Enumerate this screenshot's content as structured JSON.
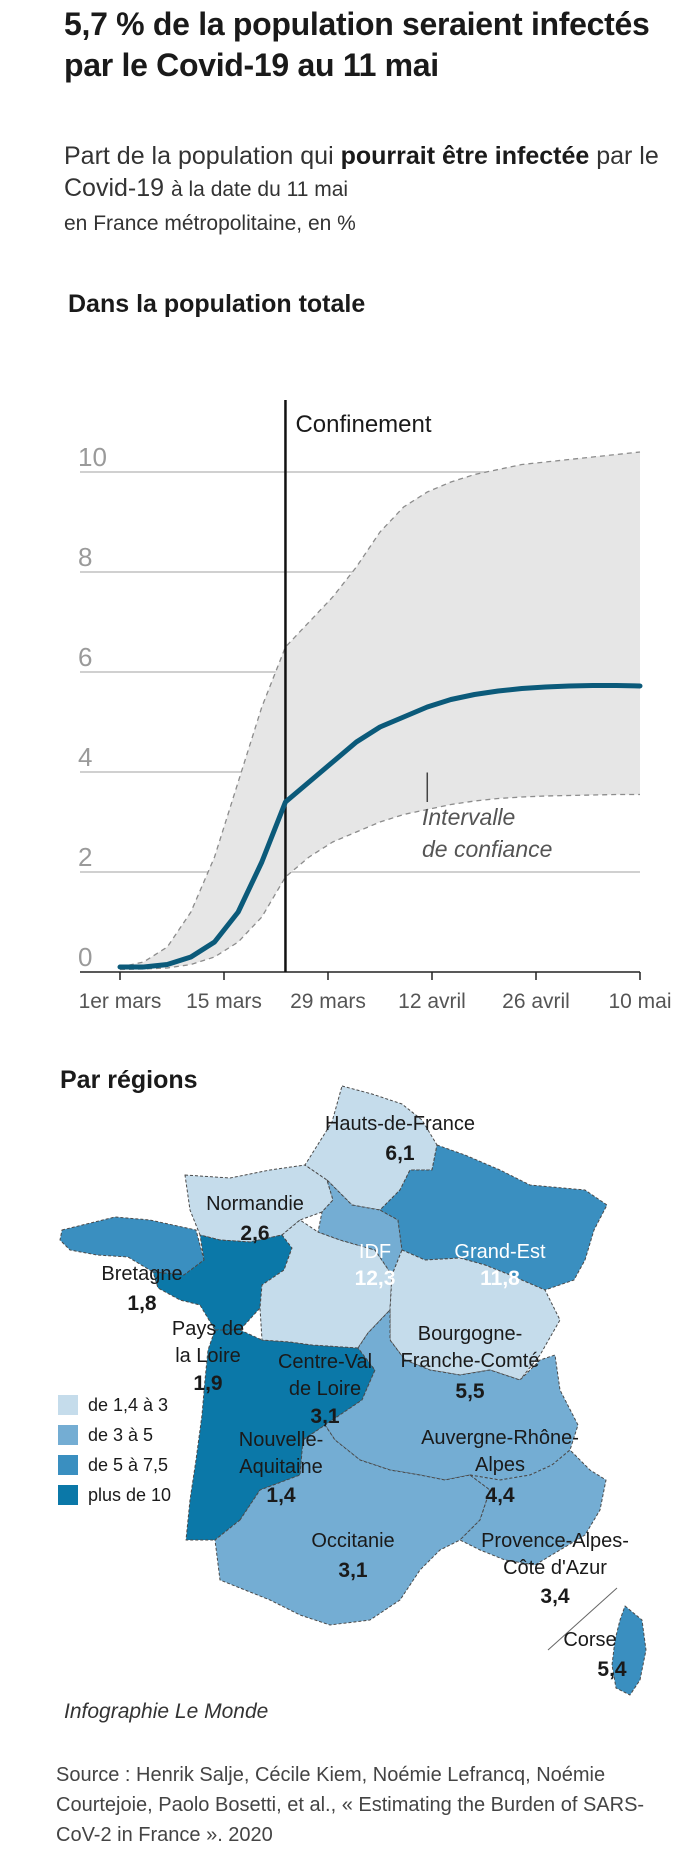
{
  "header": {
    "title": "5,7 % de la population seraient infectés par le Covid-19 au 11 mai",
    "subtitle_pre": "Part de la population qui ",
    "subtitle_bold": "pourrait être infectée",
    "subtitle_mid": " par le Covid-19 ",
    "subtitle_small": "à la date du 11 mai",
    "subtitle_post": "en France métropolitaine, en %"
  },
  "section_total": "Dans la population totale",
  "section_regions": "Par régions",
  "chart_data": [
    {
      "type": "line",
      "title": "Dans la population totale",
      "x_tick_labels": [
        "1er mars",
        "15 mars",
        "29 mars",
        "12 avril",
        "26 avril",
        "10 mai"
      ],
      "y_tick_labels": [
        "0",
        "2",
        "4",
        "6",
        "8",
        "10"
      ],
      "ylim": [
        0,
        10.5
      ],
      "grid": true,
      "series": [
        {
          "values": [
            0.1,
            0.1,
            0.15,
            0.3,
            0.6,
            1.2,
            2.2,
            3.4,
            3.8,
            4.2,
            4.6,
            4.9,
            5.1,
            5.3,
            5.45,
            5.55,
            5.62,
            5.67,
            5.7,
            5.72,
            5.73,
            5.73,
            5.72
          ]
        }
      ],
      "band_upper": [
        0.1,
        0.2,
        0.5,
        1.2,
        2.3,
        3.8,
        5.3,
        6.5,
        7.0,
        7.5,
        8.1,
        8.8,
        9.3,
        9.6,
        9.8,
        9.95,
        10.05,
        10.15,
        10.2,
        10.25,
        10.3,
        10.35,
        10.4
      ],
      "band_lower": [
        0.05,
        0.06,
        0.08,
        0.15,
        0.3,
        0.6,
        1.1,
        1.9,
        2.3,
        2.6,
        2.8,
        3.0,
        3.15,
        3.25,
        3.35,
        3.42,
        3.47,
        3.5,
        3.52,
        3.53,
        3.54,
        3.55,
        3.55
      ],
      "annotations": {
        "event": "Confinement",
        "band_label_1": "Intervalle",
        "band_label_2": "de confiance"
      },
      "colors": {
        "line": "#0b5a7a",
        "band": "#e6e6e6",
        "grid": "#b5b5b5"
      }
    },
    {
      "type": "map",
      "title": "Par régions",
      "regions": [
        {
          "name": "Hauts-de-France",
          "value": "6,1",
          "color": "#3a8fc0"
        },
        {
          "name": "Normandie",
          "value": "2,6",
          "color": "#c5dceb"
        },
        {
          "name": "IDF",
          "value": "12,3",
          "color": "#0b78a8"
        },
        {
          "name": "Grand-Est",
          "value": "11,8",
          "color": "#0b78a8"
        },
        {
          "name": "Bretagne",
          "value": "1,8",
          "color": "#c5dceb"
        },
        {
          "name": "Pays de la Loire",
          "value": "1,9",
          "color": "#c5dceb"
        },
        {
          "name": "Centre-Val de Loire",
          "value": "3,1",
          "color": "#74add3"
        },
        {
          "name": "Bourgogne-Franche-Comté",
          "value": "5,5",
          "color": "#3a8fc0"
        },
        {
          "name": "Nouvelle-Aquitaine",
          "value": "1,4",
          "color": "#c5dceb"
        },
        {
          "name": "Auvergne-Rhône-Alpes",
          "value": "4,4",
          "color": "#74add3"
        },
        {
          "name": "Occitanie",
          "value": "3,1",
          "color": "#74add3"
        },
        {
          "name": "Provence-Alpes-Côte d'Azur",
          "value": "3,4",
          "color": "#74add3"
        },
        {
          "name": "Corse",
          "value": "5,4",
          "color": "#3a8fc0"
        }
      ],
      "legend": [
        {
          "label": "de 1,4 à 3",
          "color": "#c5dceb"
        },
        {
          "label": "de 3 à 5",
          "color": "#74add3"
        },
        {
          "label": "de 5 à 7,5",
          "color": "#3a8fc0"
        },
        {
          "label": "plus de 10",
          "color": "#0b78a8"
        }
      ]
    }
  ],
  "credit": "Infographie Le Monde",
  "source": "Source : Henrik Salje, Cécile Kiem, Noémie Lefrancq, Noémie Courtejoie, Paolo Bosetti, et al., « Estimating the Burden of SARS-CoV-2 in France ». 2020"
}
